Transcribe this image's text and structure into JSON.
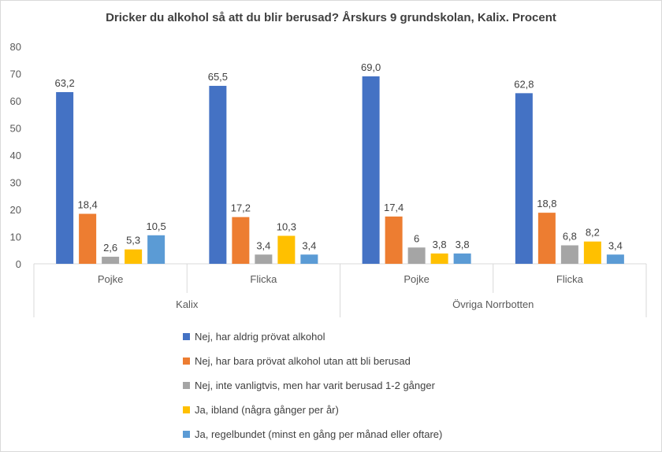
{
  "chart_data": {
    "type": "bar",
    "title": "Dricker du alkohol så att du blir berusad? Årskurs 9 grundskolan, Kalix. Procent",
    "xlabel": "",
    "ylabel": "",
    "ylim": [
      0,
      80
    ],
    "yticks": [
      0,
      10,
      20,
      30,
      40,
      50,
      60,
      70,
      80
    ],
    "grid": false,
    "legend_position": "bottom",
    "groups": [
      {
        "name": "Kalix",
        "categories": [
          "Pojke",
          "Flicka"
        ]
      },
      {
        "name": "Övriga Norrbotten",
        "categories": [
          "Pojke",
          "Flicka"
        ]
      }
    ],
    "categories": [
      "Pojke",
      "Flicka",
      "Pojke",
      "Flicka"
    ],
    "series": [
      {
        "name": "Nej, har aldrig prövat alkohol",
        "color": "#4472c4",
        "values": [
          63.2,
          65.5,
          69.0,
          62.8
        ],
        "labels": [
          "63,2",
          "65,5",
          "69,0",
          "62,8"
        ]
      },
      {
        "name": "Nej, har bara prövat alkohol utan att bli berusad",
        "color": "#ed7d31",
        "values": [
          18.4,
          17.2,
          17.4,
          18.8
        ],
        "labels": [
          "18,4",
          "17,2",
          "17,4",
          "18,8"
        ]
      },
      {
        "name": "Nej, inte vanligtvis, men har varit berusad 1-2 gånger",
        "color": "#a5a5a5",
        "values": [
          2.6,
          3.4,
          6,
          6.8
        ],
        "labels": [
          "2,6",
          "3,4",
          "6",
          "6,8"
        ]
      },
      {
        "name": "Ja, ibland (några gånger per år)",
        "color": "#ffc000",
        "values": [
          5.3,
          10.3,
          3.8,
          8.2
        ],
        "labels": [
          "5,3",
          "10,3",
          "3,8",
          "8,2"
        ]
      },
      {
        "name": "Ja, regelbundet (minst en gång per månad eller oftare)",
        "color": "#5b9bd5",
        "values": [
          10.5,
          3.4,
          3.8,
          3.4
        ],
        "labels": [
          "10,5",
          "3,4",
          "3,8",
          "3,4"
        ]
      }
    ]
  }
}
